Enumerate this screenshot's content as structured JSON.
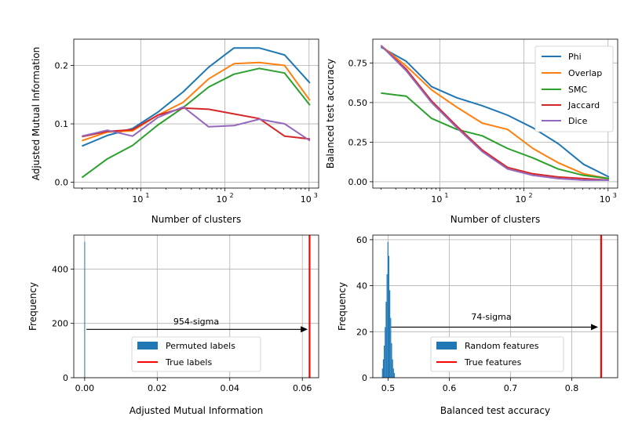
{
  "chart_data": [
    {
      "type": "line",
      "xscale": "log",
      "xlim": [
        1.6,
        1300
      ],
      "ylim": [
        -0.01,
        0.245
      ],
      "xticks": [
        {
          "v": 10,
          "base": "10",
          "exp": "1"
        },
        {
          "v": 100,
          "base": "10",
          "exp": "2"
        },
        {
          "v": 1000,
          "base": "10",
          "exp": "3"
        }
      ],
      "yticks": [
        {
          "v": 0.0,
          "label": "0.0"
        },
        {
          "v": 0.1,
          "label": "0.1"
        },
        {
          "v": 0.2,
          "label": "0.2"
        }
      ],
      "xlabel": "Number of clusters",
      "ylabel": "Adjusted Mutual Information",
      "legend": "none",
      "x": [
        2,
        4,
        8,
        16,
        32,
        64,
        128,
        256,
        512,
        1024
      ],
      "series": [
        {
          "name": "Phi",
          "color": "#1f77b4",
          "values": [
            0.062,
            0.08,
            0.092,
            0.12,
            0.155,
            0.197,
            0.23,
            0.23,
            0.218,
            0.17
          ]
        },
        {
          "name": "Overlap",
          "color": "#ff7f0e",
          "values": [
            0.071,
            0.086,
            0.088,
            0.115,
            0.137,
            0.177,
            0.203,
            0.205,
            0.2,
            0.14
          ]
        },
        {
          "name": "SMC",
          "color": "#2ca02c",
          "values": [
            0.008,
            0.04,
            0.063,
            0.098,
            0.128,
            0.163,
            0.185,
            0.195,
            0.187,
            0.132
          ]
        },
        {
          "name": "Jaccard",
          "color": "#d62728",
          "values": [
            0.078,
            0.087,
            0.09,
            0.115,
            0.127,
            0.125,
            0.117,
            0.109,
            0.079,
            0.074
          ]
        },
        {
          "name": "Dice",
          "color": "#9467bd",
          "values": [
            0.079,
            0.089,
            0.079,
            0.111,
            0.129,
            0.095,
            0.097,
            0.108,
            0.1,
            0.071
          ]
        }
      ]
    },
    {
      "type": "line",
      "xscale": "log",
      "xlim": [
        1.6,
        1300
      ],
      "ylim": [
        -0.04,
        0.9
      ],
      "xticks": [
        {
          "v": 10,
          "base": "10",
          "exp": "1"
        },
        {
          "v": 100,
          "base": "10",
          "exp": "2"
        },
        {
          "v": 1000,
          "base": "10",
          "exp": "3"
        }
      ],
      "yticks": [
        {
          "v": 0.0,
          "label": "0.00"
        },
        {
          "v": 0.25,
          "label": "0.25"
        },
        {
          "v": 0.5,
          "label": "0.50"
        },
        {
          "v": 0.75,
          "label": "0.75"
        }
      ],
      "xlabel": "Number of clusters",
      "ylabel": "Balanced test accuracy",
      "legend": "top-right",
      "x": [
        2,
        4,
        8,
        16,
        32,
        64,
        128,
        256,
        512,
        1024
      ],
      "series": [
        {
          "name": "Phi",
          "color": "#1f77b4",
          "values": [
            0.85,
            0.76,
            0.6,
            0.53,
            0.48,
            0.42,
            0.34,
            0.24,
            0.11,
            0.03
          ]
        },
        {
          "name": "Overlap",
          "color": "#ff7f0e",
          "values": [
            0.86,
            0.73,
            0.58,
            0.47,
            0.37,
            0.33,
            0.21,
            0.12,
            0.05,
            0.02
          ]
        },
        {
          "name": "SMC",
          "color": "#2ca02c",
          "values": [
            0.56,
            0.54,
            0.4,
            0.33,
            0.29,
            0.21,
            0.15,
            0.08,
            0.04,
            0.02
          ]
        },
        {
          "name": "Jaccard",
          "color": "#d62728",
          "values": [
            0.86,
            0.71,
            0.51,
            0.35,
            0.2,
            0.09,
            0.05,
            0.03,
            0.02,
            0.01
          ]
        },
        {
          "name": "Dice",
          "color": "#9467bd",
          "values": [
            0.86,
            0.7,
            0.5,
            0.34,
            0.19,
            0.08,
            0.04,
            0.02,
            0.01,
            0.01
          ]
        }
      ]
    },
    {
      "type": "histogram",
      "xlim": [
        -0.003,
        0.0645
      ],
      "ylim": [
        0,
        525
      ],
      "xticks": [
        {
          "v": 0.0,
          "label": "0.00"
        },
        {
          "v": 0.02,
          "label": "0.02"
        },
        {
          "v": 0.04,
          "label": "0.04"
        },
        {
          "v": 0.06,
          "label": "0.06"
        }
      ],
      "yticks": [
        {
          "v": 0,
          "label": "0"
        },
        {
          "v": 200,
          "label": "200"
        },
        {
          "v": 400,
          "label": "400"
        }
      ],
      "xlabel": "Adjusted Mutual Information",
      "ylabel": "Frequency",
      "legend": "lower-center",
      "bars": [
        {
          "x0": -0.0001,
          "x1": 0.0001,
          "count": 500
        }
      ],
      "bar_color": "#1f77b4",
      "bar_label": "Permuted labels",
      "true_value": 0.062,
      "true_color": "#ff0000",
      "true_label": "True labels",
      "arrow": {
        "from": 0.0005,
        "to": 0.0615,
        "y": 178
      },
      "sigma_label": "954-sigma"
    },
    {
      "type": "histogram",
      "xlim": [
        0.475,
        0.875
      ],
      "ylim": [
        0,
        62
      ],
      "xticks": [
        {
          "v": 0.5,
          "label": "0.5"
        },
        {
          "v": 0.6,
          "label": "0.6"
        },
        {
          "v": 0.7,
          "label": "0.7"
        },
        {
          "v": 0.8,
          "label": "0.8"
        }
      ],
      "yticks": [
        {
          "v": 0,
          "label": "0"
        },
        {
          "v": 20,
          "label": "20"
        },
        {
          "v": 40,
          "label": "40"
        },
        {
          "v": 60,
          "label": "60"
        }
      ],
      "xlabel": "Balanced test accuracy",
      "ylabel": "Frequency",
      "legend": "lower-center",
      "bars": [
        {
          "x0": 0.49,
          "x1": 0.4915,
          "count": 4
        },
        {
          "x0": 0.4915,
          "x1": 0.493,
          "count": 8
        },
        {
          "x0": 0.493,
          "x1": 0.4945,
          "count": 14
        },
        {
          "x0": 0.4945,
          "x1": 0.496,
          "count": 22
        },
        {
          "x0": 0.496,
          "x1": 0.4975,
          "count": 33
        },
        {
          "x0": 0.4975,
          "x1": 0.499,
          "count": 45
        },
        {
          "x0": 0.499,
          "x1": 0.5005,
          "count": 59
        },
        {
          "x0": 0.5005,
          "x1": 0.502,
          "count": 53
        },
        {
          "x0": 0.502,
          "x1": 0.5035,
          "count": 38
        },
        {
          "x0": 0.5035,
          "x1": 0.505,
          "count": 26
        },
        {
          "x0": 0.505,
          "x1": 0.5065,
          "count": 15
        },
        {
          "x0": 0.5065,
          "x1": 0.508,
          "count": 8
        },
        {
          "x0": 0.508,
          "x1": 0.5095,
          "count": 4
        },
        {
          "x0": 0.5095,
          "x1": 0.511,
          "count": 2
        }
      ],
      "bar_color": "#1f77b4",
      "bar_label": "Random features",
      "true_value": 0.848,
      "true_color": "#ff0000",
      "true_label": "True features",
      "arrow": {
        "from": 0.505,
        "to": 0.843,
        "y": 22
      },
      "sigma_label": "74-sigma"
    }
  ]
}
